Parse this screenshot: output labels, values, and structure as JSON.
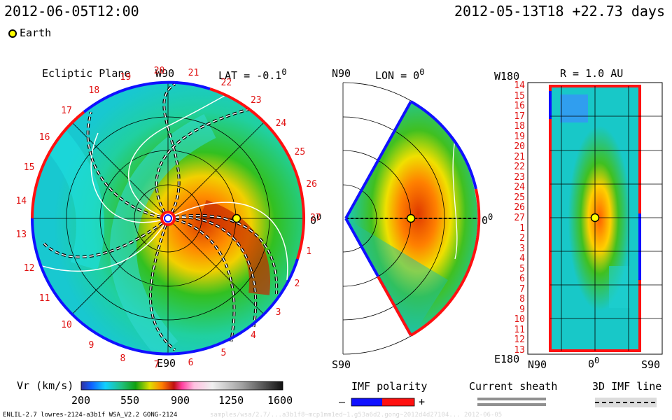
{
  "header": {
    "left_timestamp": "2012-06-05T12:00",
    "right_timestamp": "2012-05-13T18 +22.73 days",
    "legend_earth": "Earth"
  },
  "ecliptic": {
    "title": "Ecliptic Plane",
    "lat_label": "LAT = -0.1",
    "deg": "0",
    "top_label": "W90",
    "bottom_label": "E90",
    "right_label": "0",
    "rotation_numbers": [
      "1",
      "2",
      "3",
      "4",
      "5",
      "6",
      "7",
      "8",
      "9",
      "10",
      "11",
      "12",
      "13",
      "14",
      "15",
      "16",
      "17",
      "18",
      "19",
      "20",
      "21",
      "22",
      "23",
      "24",
      "25",
      "26",
      "27"
    ]
  },
  "meridional": {
    "n_label": "N90",
    "s_label": "S90",
    "lon_label": "LON = 0",
    "right_label": "0"
  },
  "radial": {
    "top_label": "W180",
    "r_label": "R = 1.0 AU",
    "bottom_left": "E180",
    "x_labels": [
      "N90",
      "0",
      "S90"
    ],
    "y_labels": [
      "14",
      "15",
      "16",
      "17",
      "18",
      "19",
      "20",
      "21",
      "22",
      "23",
      "24",
      "25",
      "26",
      "27",
      "1",
      "2",
      "3",
      "4",
      "5",
      "6",
      "7",
      "8",
      "9",
      "10",
      "11",
      "12",
      "13"
    ]
  },
  "colorbar": {
    "label": "Vr (km/s)",
    "ticks": [
      "200",
      "550",
      "900",
      "1250",
      "1600"
    ]
  },
  "imf": {
    "label": "IMF polarity",
    "minus": "–",
    "plus": "+",
    "neg_color": "#1010ff",
    "pos_color": "#ff1010"
  },
  "sheath": {
    "label": "Current sheath"
  },
  "imf3d": {
    "label": "3D IMF line"
  },
  "footer": {
    "model": "ENLIL-2.7 lowres-2124-a3b1f WSA_V2.2 GONG-2124",
    "faint": "samples/wsa/2.7/...a3b1f8~mcp1mm1ed~1.g53a6d2.gong~2012d4d27104...   2012-06-05"
  }
}
